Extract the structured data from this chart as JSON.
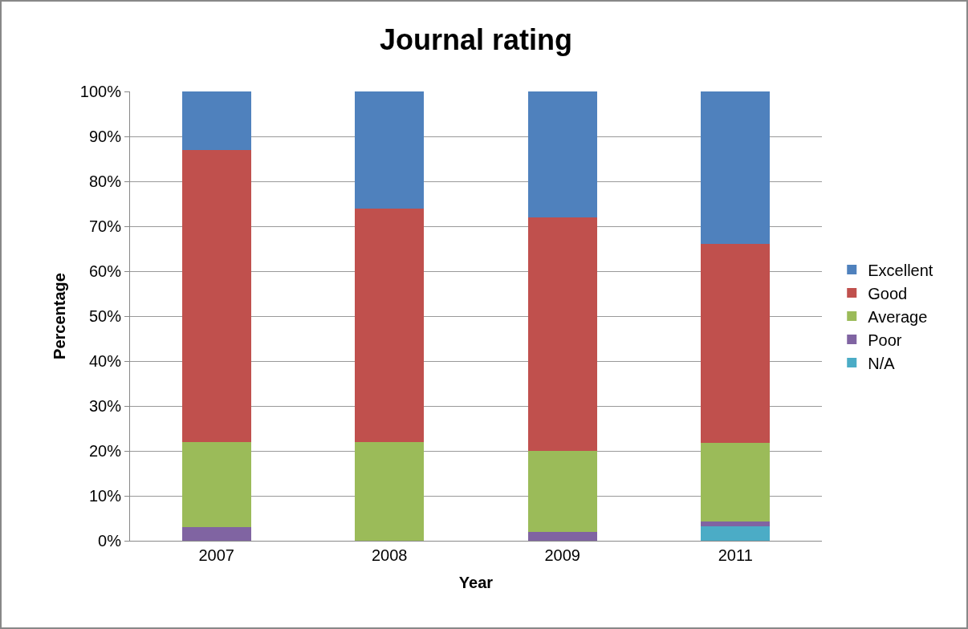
{
  "chart_data": {
    "type": "bar",
    "title": "Journal rating",
    "xlabel": "Year",
    "ylabel": "Percentage",
    "categories": [
      "2007",
      "2008",
      "2009",
      "2011"
    ],
    "stacked": true,
    "series": [
      {
        "name": "N/A",
        "color": "#4bacc6",
        "values": [
          0,
          0,
          0,
          3.2
        ]
      },
      {
        "name": "Poor",
        "color": "#8064a2",
        "values": [
          3,
          0,
          2,
          1.1
        ]
      },
      {
        "name": "Average",
        "color": "#9bbb59",
        "values": [
          19,
          22,
          18,
          17.5
        ]
      },
      {
        "name": "Good",
        "color": "#c0504d",
        "values": [
          65,
          52,
          52,
          44.3
        ]
      },
      {
        "name": "Excellent",
        "color": "#4f81bd",
        "values": [
          13,
          26,
          28,
          33.9
        ]
      }
    ],
    "ylim": [
      0,
      100
    ],
    "yticks": [
      {
        "value": 0,
        "label": "0%"
      },
      {
        "value": 10,
        "label": "10%"
      },
      {
        "value": 20,
        "label": "20%"
      },
      {
        "value": 30,
        "label": "30%"
      },
      {
        "value": 40,
        "label": "40%"
      },
      {
        "value": 50,
        "label": "50%"
      },
      {
        "value": 60,
        "label": "60%"
      },
      {
        "value": 70,
        "label": "70%"
      },
      {
        "value": 80,
        "label": "80%"
      },
      {
        "value": 90,
        "label": "90%"
      },
      {
        "value": 100,
        "label": "100%"
      }
    ],
    "grid": "y",
    "legend": "right"
  }
}
